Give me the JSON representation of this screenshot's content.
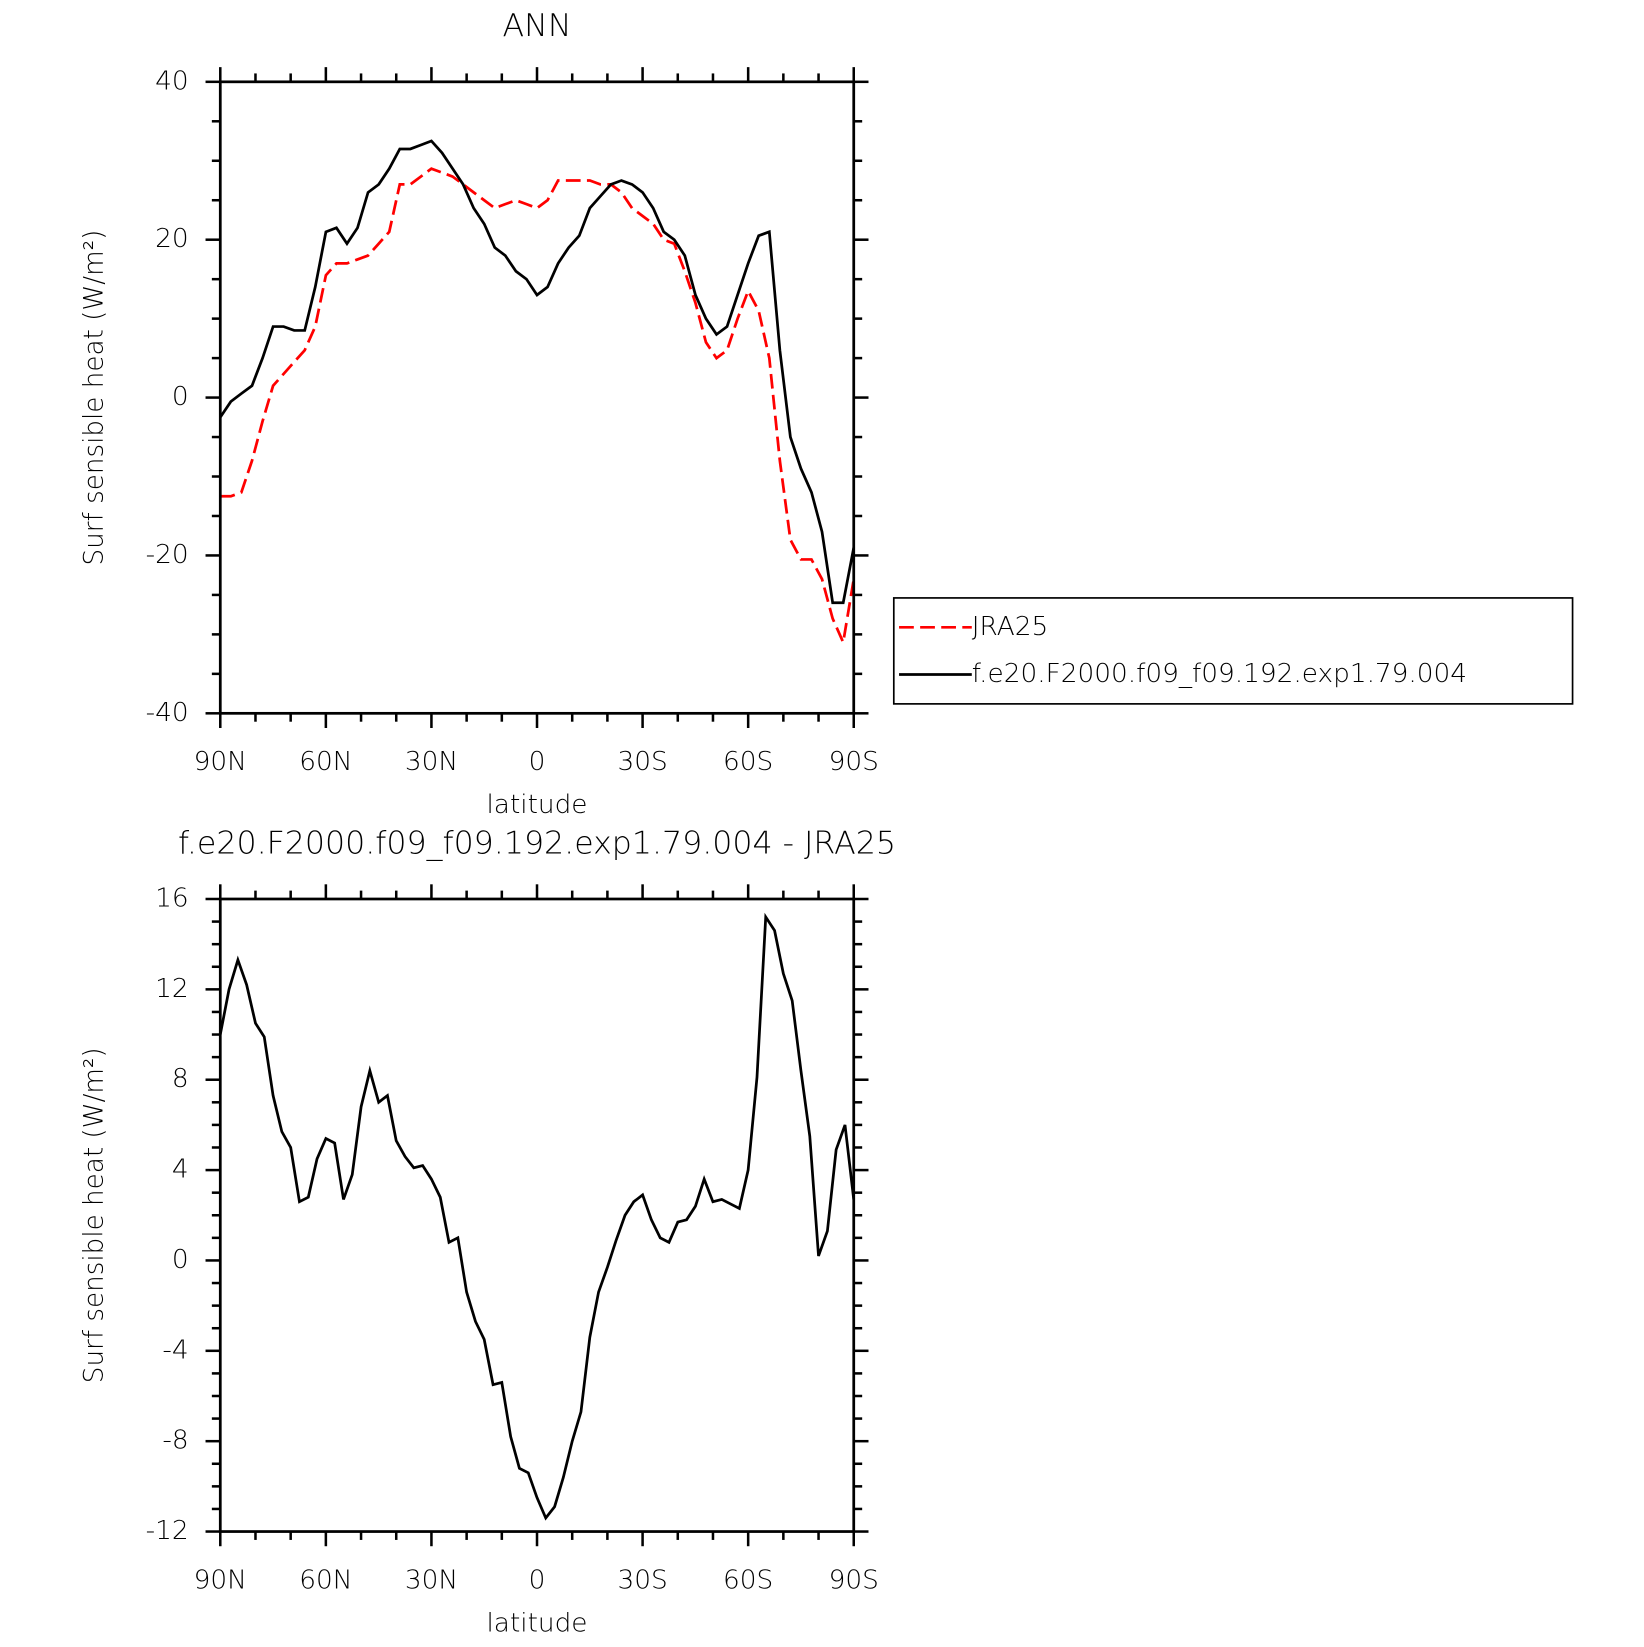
{
  "chart_data": [
    {
      "type": "line",
      "title": "ANN",
      "xlabel": "latitude",
      "ylabel": "Surf sensible heat (W/m²)",
      "x": [
        90,
        87,
        84,
        81,
        78,
        75,
        72,
        69,
        66,
        63,
        60,
        57,
        54,
        51,
        48,
        45,
        42,
        39,
        36,
        33,
        30,
        27,
        24,
        21,
        18,
        15,
        12,
        9,
        6,
        3,
        0,
        -3,
        -6,
        -9,
        -12,
        -15,
        -18,
        -21,
        -24,
        -27,
        -30,
        -33,
        -36,
        -39,
        -42,
        -45,
        -48,
        -51,
        -54,
        -57,
        -60,
        -63,
        -66,
        -69,
        -72,
        -75,
        -78,
        -81,
        -84,
        -87,
        -90
      ],
      "series": [
        {
          "name": "JRA25",
          "color": "#ff0000",
          "linestyle": "dashed",
          "values": [
            -12.5,
            -12.5,
            -12,
            -8,
            -3,
            1.5,
            3,
            4.5,
            6,
            9,
            15.5,
            17,
            17,
            17.5,
            18,
            19.5,
            21,
            27,
            27,
            28,
            29,
            28.5,
            28,
            27,
            26,
            25,
            24,
            24.5,
            25,
            24.5,
            24,
            25,
            27.5,
            27.5,
            27.5,
            27.5,
            27,
            27,
            26,
            24,
            23,
            22,
            20,
            19.5,
            16,
            12,
            7,
            5,
            6,
            10,
            13.5,
            11,
            5,
            -8,
            -18,
            -20.5,
            -20.5,
            -23,
            -28,
            -31,
            -23
          ]
        },
        {
          "name": "f.e20.F2000.f09_f09.192.exp1.79.004",
          "color": "#000000",
          "linestyle": "solid",
          "values": [
            -2.5,
            -0.5,
            0.5,
            1.5,
            5,
            9,
            9,
            8.5,
            8.5,
            14,
            21,
            21.5,
            19.5,
            21.5,
            26,
            27,
            29,
            31.5,
            31.5,
            32,
            32.5,
            31,
            29,
            27,
            24,
            22,
            19,
            18,
            16,
            15,
            13,
            14,
            17,
            19,
            20.5,
            24,
            25.5,
            27,
            27.5,
            27,
            26,
            24,
            21,
            20,
            18,
            13,
            10,
            8,
            9,
            13,
            17,
            20.5,
            21,
            6,
            -5,
            -9,
            -12,
            -17,
            -26,
            -26,
            -19
          ]
        }
      ],
      "xlim": [
        90,
        -90
      ],
      "xticks": [
        {
          "value": 90,
          "label": "90N"
        },
        {
          "value": 60,
          "label": "60N"
        },
        {
          "value": 30,
          "label": "30N"
        },
        0,
        {
          "value": -30,
          "label": "30S"
        },
        {
          "value": -60,
          "label": "60S"
        },
        {
          "value": -90,
          "label": "90S"
        }
      ],
      "minor_xticks": [
        80,
        70,
        50,
        40,
        20,
        10,
        -10,
        -20,
        -40,
        -50,
        -70,
        -80
      ],
      "ylim": [
        -40,
        40
      ],
      "yticks": [
        -40,
        -20,
        0,
        20,
        40
      ],
      "minor_yticks": [
        -35,
        -30,
        -25,
        -15,
        -10,
        -5,
        5,
        10,
        15,
        25,
        30,
        35
      ],
      "legend": "right"
    },
    {
      "type": "line",
      "title": "f.e20.F2000.f09_f09.192.exp1.79.004 - JRA25",
      "xlabel": "latitude",
      "ylabel": "Surf sensible heat (W/m²)",
      "x": [
        90,
        87.5,
        85,
        82.5,
        80,
        77.5,
        75,
        72.5,
        70,
        67.5,
        65,
        62.5,
        60,
        57.5,
        55,
        52.5,
        50,
        47.5,
        45,
        42.5,
        40,
        37.5,
        35,
        32.5,
        30,
        27.5,
        25,
        22.5,
        20,
        17.5,
        15,
        12.5,
        10,
        7.5,
        5,
        2.5,
        0,
        -2.5,
        -5,
        -7.5,
        -10,
        -12.5,
        -15,
        -17.5,
        -20,
        -22.5,
        -25,
        -27.5,
        -30,
        -32.5,
        -35,
        -37.5,
        -40,
        -42.5,
        -45,
        -47.5,
        -50,
        -52.5,
        -55,
        -57.5,
        -60,
        -62.5,
        -65,
        -67.5,
        -70,
        -72.5,
        -75,
        -77.5,
        -80,
        -82.5,
        -85,
        -87.5,
        -90
      ],
      "series": [
        {
          "color": "#000000",
          "linestyle": "solid",
          "values": [
            10,
            12,
            13.3,
            12.2,
            10.5,
            9.9,
            7.3,
            5.7,
            5,
            2.6,
            2.8,
            4.5,
            5.4,
            5.2,
            2.7,
            3.8,
            6.8,
            8.4,
            7,
            7.3,
            5.3,
            4.6,
            4.1,
            4.2,
            3.6,
            2.8,
            0.8,
            1,
            -1.4,
            -2.7,
            -3.5,
            -5.5,
            -5.4,
            -7.8,
            -9.2,
            -9.4,
            -10.5,
            -11.4,
            -10.9,
            -9.6,
            -8,
            -6.7,
            -3.4,
            -1.4,
            -0.3,
            0.9,
            2,
            2.6,
            2.9,
            1.8,
            1,
            0.8,
            1.7,
            1.8,
            2.4,
            3.6,
            2.6,
            2.7,
            2.5,
            2.3,
            4,
            8.1,
            15.2,
            14.6,
            12.7,
            11.5,
            8.4,
            5.5,
            0.2,
            1.3,
            4.9,
            6,
            2.7
          ]
        }
      ],
      "xlim": [
        90,
        -90
      ],
      "xticks": [
        {
          "value": 90,
          "label": "90N"
        },
        {
          "value": 60,
          "label": "60N"
        },
        {
          "value": 30,
          "label": "30N"
        },
        0,
        {
          "value": -30,
          "label": "30S"
        },
        {
          "value": -60,
          "label": "60S"
        },
        {
          "value": -90,
          "label": "90S"
        }
      ],
      "minor_xticks": [
        80,
        70,
        50,
        40,
        20,
        10,
        -10,
        -20,
        -40,
        -50,
        -70,
        -80
      ],
      "ylim": [
        -12,
        16
      ],
      "yticks": [
        -12,
        -8,
        -4,
        0,
        4,
        8,
        12,
        16
      ],
      "minor_yticks": [
        -11,
        -10,
        -9,
        -7,
        -6,
        -5,
        -3,
        -2,
        -1,
        1,
        2,
        3,
        5,
        6,
        7,
        9,
        10,
        11,
        13,
        14,
        15
      ]
    }
  ]
}
